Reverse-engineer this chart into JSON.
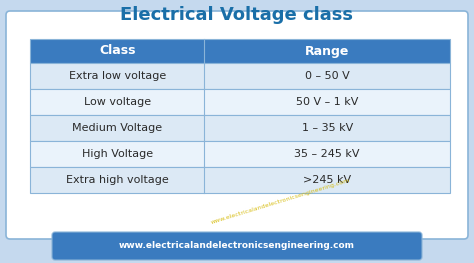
{
  "title": "Electrical Voltage class",
  "title_color": "#1a6fa8",
  "title_fontsize": 13,
  "header": [
    "Class",
    "Range"
  ],
  "header_bg": "#3a7bbf",
  "header_text_color": "#ffffff",
  "rows": [
    [
      "Extra low voltage",
      "0 – 50 V"
    ],
    [
      "Low voltage",
      "50 V – 1 kV"
    ],
    [
      "Medium Voltage",
      "1 – 35 kV"
    ],
    [
      "High Voltage",
      "35 – 245 kV"
    ],
    [
      "Extra high voltage",
      ">245 kV"
    ]
  ],
  "row_bg_odd": "#dce9f5",
  "row_bg_even": "#eaf3fb",
  "row_text_color": "#2a2a2a",
  "border_color": "#8ab4d8",
  "outer_bg": "#c5d9ee",
  "inner_bg": "#ffffff",
  "footer_text": "www.electricalandelectronicsengineering.com",
  "footer_bg": "#3a7bbf",
  "footer_text_color": "#ffffff",
  "watermark": "www.electricalandelectronicsengineering.com",
  "watermark_color": "#d4b800"
}
